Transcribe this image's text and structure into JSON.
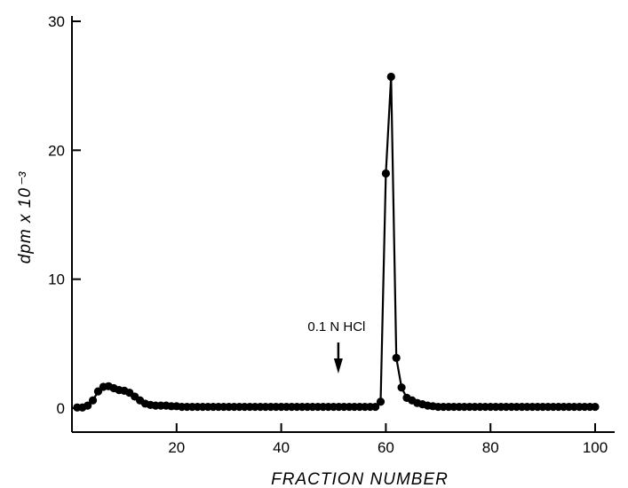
{
  "chart_data": {
    "type": "line",
    "xlabel": "FRACTION NUMBER",
    "ylabel": "dpm x 10⁻³",
    "xlim": [
      0,
      100
    ],
    "ylim": [
      0,
      30
    ],
    "x_ticks": [
      20,
      40,
      60,
      80,
      100
    ],
    "y_ticks": [
      0,
      10,
      20,
      30
    ],
    "grid": false,
    "series": [
      {
        "x": [
          1,
          2,
          3,
          4,
          5,
          6,
          7,
          8,
          9,
          10,
          11,
          12,
          13,
          14,
          15,
          16,
          17,
          18,
          19,
          20,
          21,
          22,
          23,
          24,
          25,
          26,
          27,
          28,
          29,
          30,
          31,
          32,
          33,
          34,
          35,
          36,
          37,
          38,
          39,
          40,
          41,
          42,
          43,
          44,
          45,
          46,
          47,
          48,
          49,
          50,
          51,
          52,
          53,
          54,
          55,
          56,
          57,
          58,
          59,
          60,
          61,
          62,
          63,
          64,
          65,
          66,
          67,
          68,
          69,
          70,
          71,
          72,
          73,
          74,
          75,
          76,
          77,
          78,
          79,
          80,
          81,
          82,
          83,
          84,
          85,
          86,
          87,
          88,
          89,
          90,
          91,
          92,
          93,
          94,
          95,
          96,
          97,
          98,
          99,
          100
        ],
        "y": [
          0.05,
          0.05,
          0.2,
          0.6,
          1.3,
          1.65,
          1.7,
          1.55,
          1.4,
          1.35,
          1.2,
          0.9,
          0.6,
          0.35,
          0.25,
          0.2,
          0.2,
          0.2,
          0.15,
          0.15,
          0.1,
          0.1,
          0.1,
          0.1,
          0.1,
          0.1,
          0.1,
          0.1,
          0.1,
          0.1,
          0.1,
          0.1,
          0.1,
          0.1,
          0.1,
          0.1,
          0.1,
          0.1,
          0.1,
          0.1,
          0.1,
          0.1,
          0.1,
          0.1,
          0.1,
          0.1,
          0.1,
          0.1,
          0.1,
          0.1,
          0.1,
          0.1,
          0.1,
          0.1,
          0.1,
          0.1,
          0.1,
          0.1,
          0.5,
          18.2,
          25.7,
          3.9,
          1.6,
          0.8,
          0.6,
          0.4,
          0.3,
          0.2,
          0.15,
          0.1,
          0.1,
          0.1,
          0.1,
          0.1,
          0.1,
          0.1,
          0.1,
          0.1,
          0.1,
          0.1,
          0.1,
          0.1,
          0.1,
          0.1,
          0.1,
          0.1,
          0.1,
          0.1,
          0.1,
          0.1,
          0.1,
          0.1,
          0.1,
          0.1,
          0.1,
          0.1,
          0.1,
          0.1,
          0.1,
          0.1
        ]
      }
    ],
    "annotations": [
      {
        "text": "0.1 N HCl",
        "x": 51,
        "arrow": "down"
      }
    ]
  }
}
